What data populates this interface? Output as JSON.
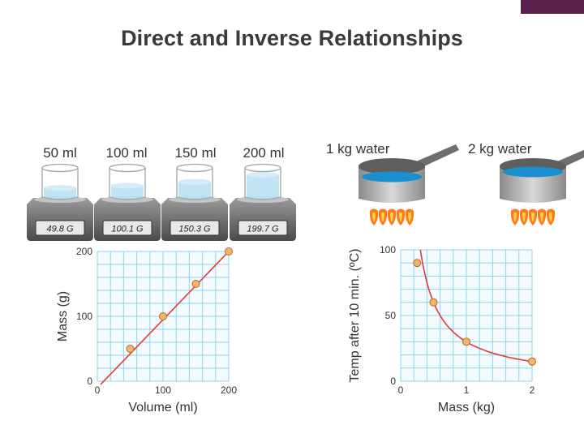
{
  "slide": {
    "title": "Direct and Inverse Relationships"
  },
  "colors": {
    "grid": "#8fd4e8",
    "curve": "#e03a3a",
    "point": "#f2b46a",
    "liquid": "#b6dff0",
    "water": "#1a8fd0",
    "flame": "#ff7a1a"
  },
  "beakers": [
    {
      "volume_label": "50 ml",
      "reading": "49.8 G",
      "fill_fraction": 0.35
    },
    {
      "volume_label": "100 ml",
      "reading": "100.1 G",
      "fill_fraction": 0.42
    },
    {
      "volume_label": "150 ml",
      "reading": "150.3 G",
      "fill_fraction": 0.55
    },
    {
      "volume_label": "200 ml",
      "reading": "199.7 G",
      "fill_fraction": 0.78
    }
  ],
  "pots": [
    {
      "label": "1 kg water"
    },
    {
      "label": "2 kg water"
    }
  ],
  "chart_data": [
    {
      "type": "line",
      "xlabel": "Volume (ml)",
      "ylabel": "Mass (g)",
      "xlim": [
        0,
        200
      ],
      "ylim": [
        0,
        200
      ],
      "xticks": [
        "0",
        "100",
        "200"
      ],
      "yticks": [
        "0",
        "100",
        "200"
      ],
      "points": [
        {
          "x": 50,
          "y": 50
        },
        {
          "x": 100,
          "y": 100
        },
        {
          "x": 150,
          "y": 150
        },
        {
          "x": 200,
          "y": 200
        }
      ],
      "grid": true
    },
    {
      "type": "line",
      "xlabel": "Mass (kg)",
      "ylabel": "Temp after 10 min. (ºC)",
      "xlim": [
        0,
        2
      ],
      "ylim": [
        0,
        100
      ],
      "xticks": [
        "0",
        "1",
        "2"
      ],
      "yticks": [
        "0",
        "50",
        "100"
      ],
      "points": [
        {
          "x": 0.25,
          "y": 90
        },
        {
          "x": 0.5,
          "y": 60
        },
        {
          "x": 1,
          "y": 30
        },
        {
          "x": 2,
          "y": 15
        }
      ],
      "grid": true
    }
  ]
}
